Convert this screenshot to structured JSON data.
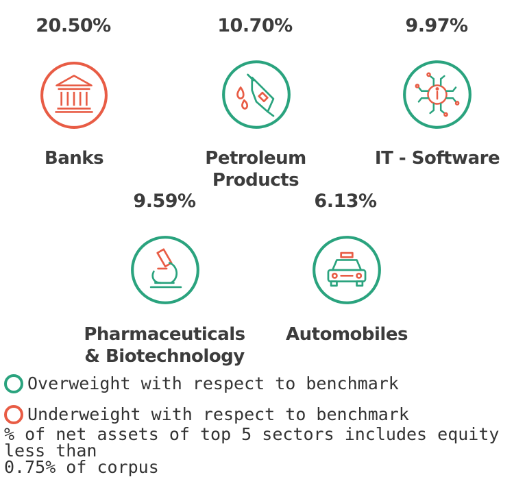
{
  "chart_data": {
    "type": "table",
    "sectors": [
      {
        "name": "Banks",
        "value_label": "20.50%",
        "value": 20.5,
        "weight": "underweight",
        "icon": "bank-building-icon"
      },
      {
        "name": "Petroleum Products",
        "value_label": "10.70%",
        "value": 10.7,
        "weight": "overweight",
        "icon": "fuel-nozzle-icon"
      },
      {
        "name": "IT - Software",
        "value_label": "9.97%",
        "value": 9.97,
        "weight": "overweight",
        "icon": "circuit-chip-icon"
      },
      {
        "name": "Pharmaceuticals & Biotechnology",
        "value_label": "9.59%",
        "value": 9.59,
        "weight": "overweight",
        "icon": "microscope-icon"
      },
      {
        "name": "Automobiles",
        "value_label": "6.13%",
        "value": 6.13,
        "weight": "overweight",
        "icon": "car-icon"
      }
    ]
  },
  "colors": {
    "overweight": "#2aa37e",
    "underweight": "#e85c45"
  },
  "legend": {
    "overweight": "Overweight with respect to benchmark",
    "underweight": "Underweight with respect to benchmark"
  },
  "note": "% of net assets of top 5 sectors includes equity less than\n0.75% of corpus"
}
